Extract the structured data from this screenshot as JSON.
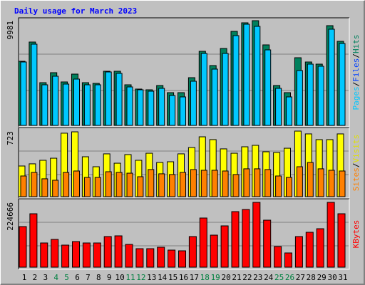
{
  "chart_data": [
    {
      "type": "bar",
      "title": "Daily usage for March 2023",
      "ylim": [
        0,
        9981
      ],
      "yticks": [
        9981
      ],
      "legend": [
        {
          "text": "Pages",
          "color": "#00c8ff"
        },
        {
          "text": "/",
          "color": "#000000"
        },
        {
          "text": "Files",
          "color": "#0040ff"
        },
        {
          "text": "/",
          "color": "#000000"
        },
        {
          "text": "Hits",
          "color": "#00805c"
        }
      ],
      "series": [
        {
          "color": "#00805c",
          "values": [
            6111,
            7944,
            4074,
            5025,
            4142,
            4889,
            4074,
            4006,
            5160,
            5160,
            3870,
            3463,
            3395,
            3802,
            3123,
            3123,
            4549,
            7062,
            5704,
            7333,
            8963,
            9778,
            9981,
            7673,
            3802,
            3123,
            6450,
            6043,
            5839,
            9506,
            8012
          ]
        },
        {
          "color": "#00c8ff",
          "values": [
            6043,
            7741,
            3870,
            4685,
            3938,
            4414,
            3870,
            3870,
            5093,
            4957,
            3667,
            3395,
            3259,
            3531,
            2852,
            2716,
            4210,
            6858,
            5364,
            6858,
            8555,
            9642,
            9438,
            7197,
            3531,
            2716,
            5228,
            5839,
            5636,
            9167,
            7809
          ]
        }
      ]
    },
    {
      "type": "bar",
      "ylim": [
        0,
        723
      ],
      "yticks": [
        723
      ],
      "legend": [
        {
          "text": "Sites",
          "color": "#ff8000"
        },
        {
          "text": "/",
          "color": "#000000"
        },
        {
          "text": "Visits",
          "color": "#e0e000"
        }
      ],
      "series": [
        {
          "color": "#ffff00",
          "values": [
            338,
            362,
            401,
            424,
            700,
            715,
            440,
            330,
            472,
            369,
            464,
            401,
            479,
            377,
            385,
            472,
            542,
            660,
            629,
            527,
            479,
            550,
            566,
            495,
            487,
            534,
            723,
            692,
            629,
            629,
            692
          ]
        },
        {
          "color": "#ff8000",
          "values": [
            228,
            267,
            197,
            181,
            267,
            283,
            212,
            212,
            275,
            267,
            259,
            220,
            299,
            252,
            244,
            267,
            299,
            291,
            291,
            283,
            244,
            307,
            307,
            299,
            228,
            212,
            330,
            377,
            307,
            291,
            283
          ]
        }
      ]
    },
    {
      "type": "bar",
      "ylim": [
        0,
        224666
      ],
      "yticks": [
        224666
      ],
      "legend": [
        {
          "text": "KBytes",
          "color": "#ff0000"
        }
      ],
      "categories": [
        "1",
        "2",
        "3",
        "4",
        "5",
        "6",
        "7",
        "8",
        "9",
        "10",
        "11",
        "12",
        "13",
        "14",
        "15",
        "16",
        "17",
        "18",
        "19",
        "20",
        "21",
        "22",
        "23",
        "24",
        "25",
        "26",
        "27",
        "28",
        "29",
        "30",
        "31"
      ],
      "label_color": "#000000",
      "weekend_label_color": "#008040",
      "weekend_indices": [
        3,
        4,
        10,
        11,
        17,
        18,
        24,
        25
      ],
      "series": [
        {
          "color": "#ff0000",
          "values": [
            140733,
            185175,
            83946,
            96291,
            76539,
            88884,
            83946,
            83946,
            106167,
            108636,
            79008,
            64194,
            64194,
            69132,
            59256,
            56787,
            106167,
            170361,
            111105,
            143202,
            192582,
            199989,
            224666,
            162954,
            71601,
            49380,
            106167,
            120981,
            133326,
            224666,
            185175
          ]
        }
      ]
    }
  ]
}
